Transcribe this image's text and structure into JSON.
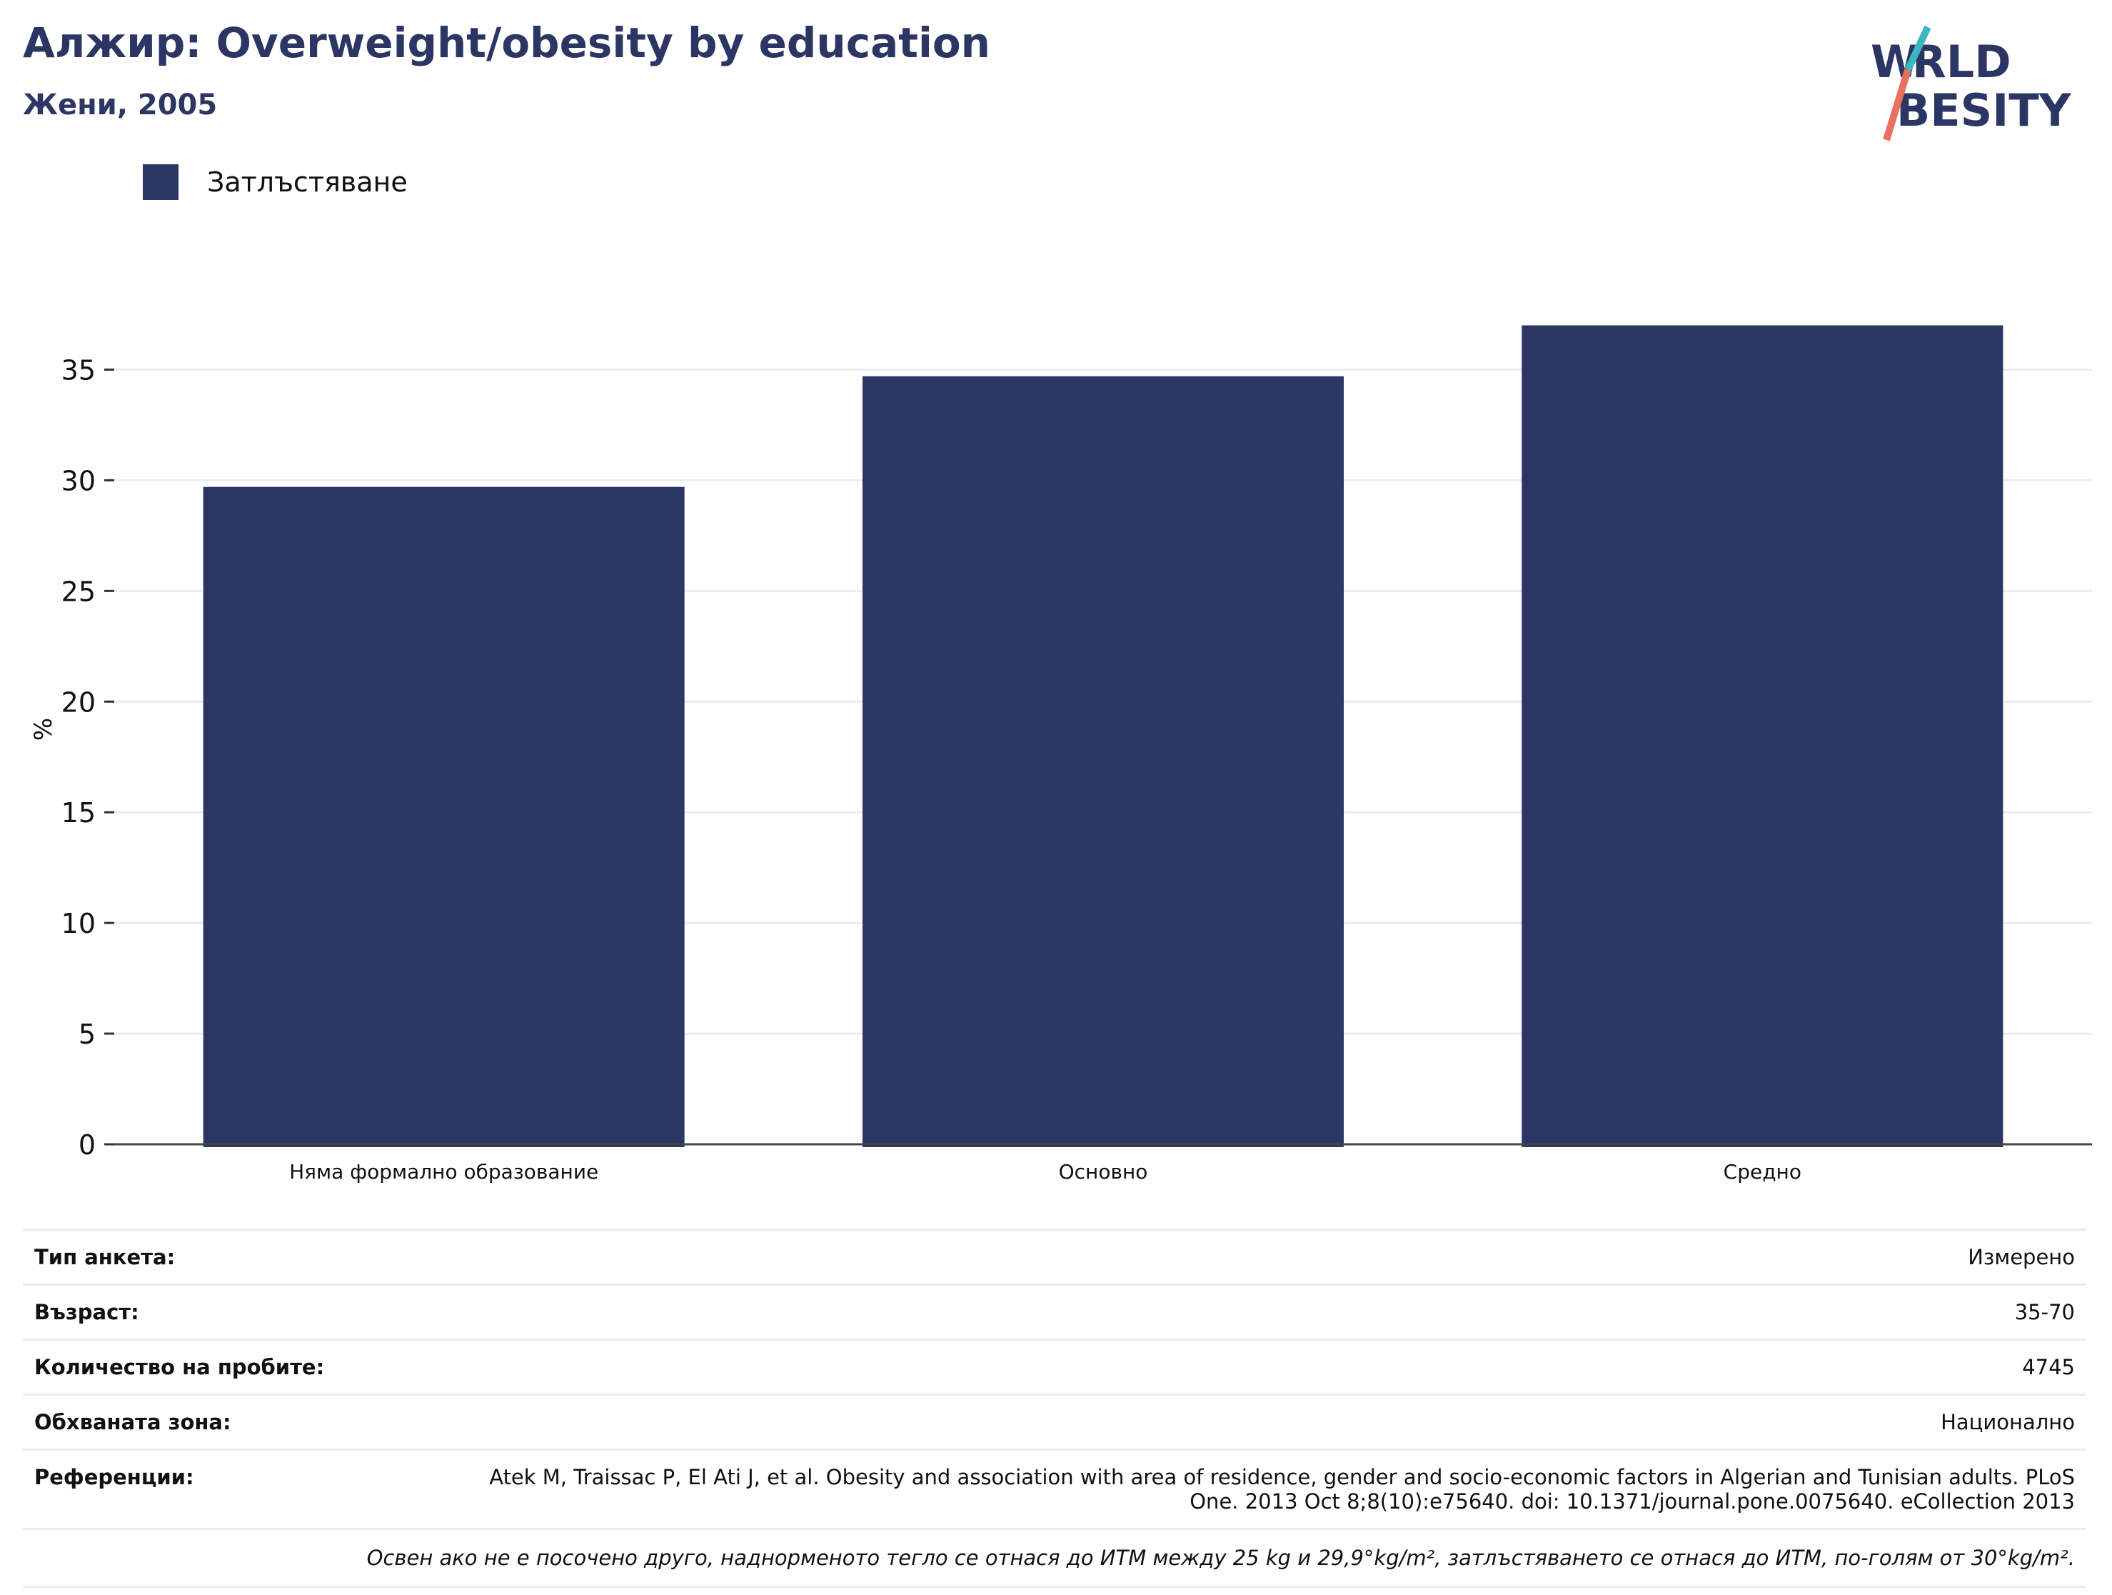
{
  "header": {
    "title": "Алжир: Overweight/obesity by education",
    "subtitle": "Жени, 2005",
    "logo_text": "WORLD OBESITY"
  },
  "legend": {
    "items": [
      {
        "label": "Затлъстяване",
        "color": "#2b3664"
      }
    ]
  },
  "chart_data": {
    "type": "bar",
    "categories": [
      "Няма формално образование",
      "Основно",
      "Средно"
    ],
    "series": [
      {
        "name": "Затлъстяване",
        "values": [
          29.7,
          34.7,
          37.0
        ],
        "color": "#2b3664"
      }
    ],
    "ylabel": "%",
    "ylim": [
      0,
      37.5
    ],
    "yticks": [
      0,
      5,
      10,
      15,
      20,
      25,
      30,
      35
    ],
    "grid": true
  },
  "meta": {
    "rows": [
      {
        "label": "Тип анкета:",
        "value": "Измерено"
      },
      {
        "label": "Възраст:",
        "value": "35-70"
      },
      {
        "label": "Количество на пробите:",
        "value": "4745"
      },
      {
        "label": "Обхваната зона:",
        "value": "Национално"
      },
      {
        "label": "Референции:",
        "value": "Atek M, Traissac P, El Ati J, et al. Obesity and association with area of residence, gender and socio-economic factors in Algerian and Tunisian adults. PLoS One. 2013 Oct 8;8(10):e75640. doi: 10.1371/journal.pone.0075640. eCollection 2013"
      }
    ],
    "note": "Освен ако не е посочено друго, наднорменото тегло се отнася до ИТМ между 25 kg и 29,9°kg/m², затлъстяването се отнася до ИТМ, по-голям от 30°kg/m²."
  },
  "colors": {
    "accent": "#2b3664",
    "logo_teal": "#3bb6c1",
    "logo_coral": "#e8705e",
    "grid": "#e9edf1"
  }
}
